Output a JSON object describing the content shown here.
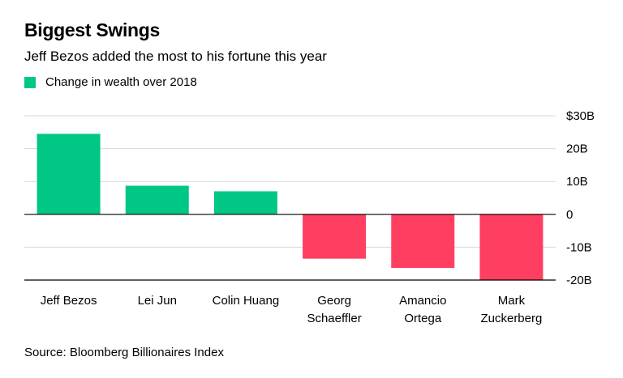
{
  "header": {
    "title": "Biggest Swings",
    "subtitle": "Jeff Bezos added the most to his fortune this year"
  },
  "legend": {
    "label": "Change in wealth over 2018",
    "color": "#00c785"
  },
  "source": "Source: Bloomberg Billionaires Index",
  "colors": {
    "positive": "#00c785",
    "negative": "#ff3f61",
    "grid": "#d8d8d8",
    "baseline": "#000000"
  },
  "chart_data": {
    "type": "bar",
    "categories": [
      [
        "Jeff Bezos"
      ],
      [
        "Lei Jun"
      ],
      [
        "Colin Huang"
      ],
      [
        "Georg",
        "Schaeffler"
      ],
      [
        "Amancio",
        "Ortega"
      ],
      [
        "Mark",
        "Zuckerberg"
      ]
    ],
    "values": [
      24.5,
      8.7,
      7.0,
      -13.5,
      -16.3,
      -20.0
    ],
    "unit": "B",
    "ylim": [
      -20,
      30
    ],
    "yticks": [
      30,
      20,
      10,
      0,
      -10,
      -20
    ],
    "ytick_labels": [
      "$30B",
      "20B",
      "10B",
      "0",
      "-10B",
      "-20B"
    ],
    "grid": true,
    "title": "Biggest Swings",
    "xlabel": "",
    "ylabel": ""
  }
}
